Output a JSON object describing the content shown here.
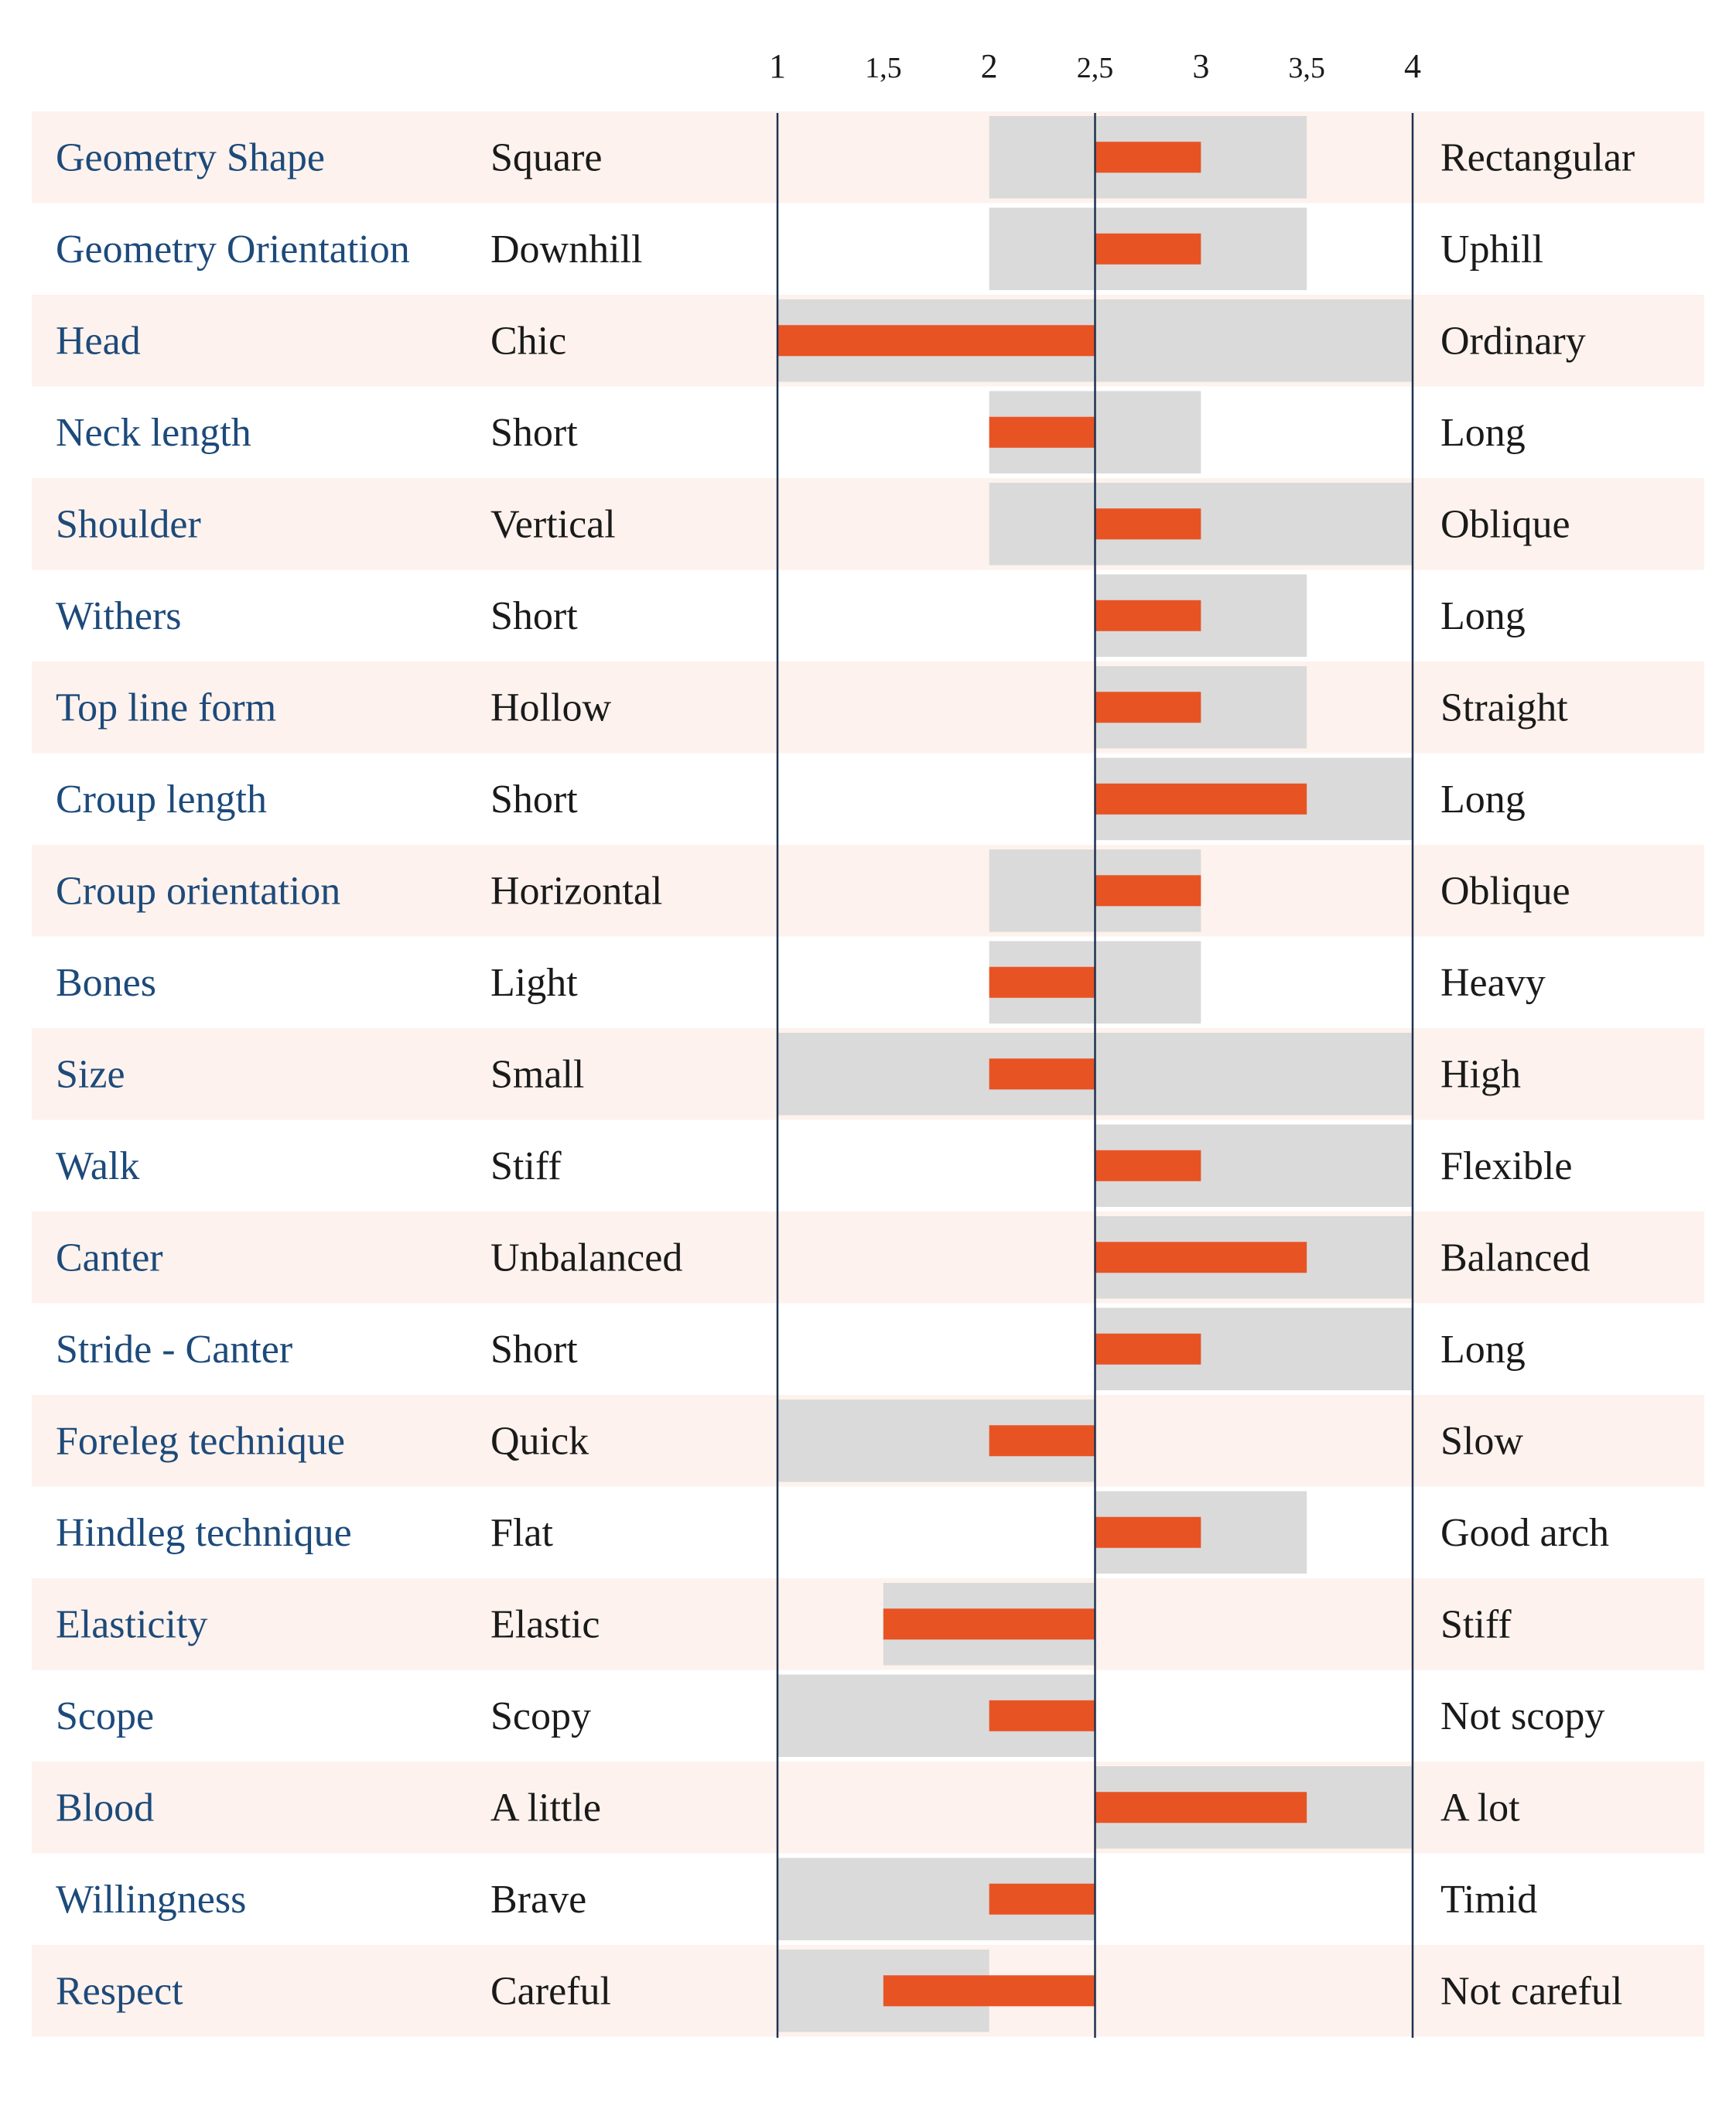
{
  "chart_data": {
    "type": "bar",
    "axis": {
      "ticks": [
        1,
        1.5,
        2,
        2.5,
        3,
        3.5,
        4
      ],
      "tick_labels": [
        "1",
        "1,5",
        "2",
        "2,5",
        "3",
        "3,5",
        "4"
      ],
      "range": [
        1,
        4
      ],
      "baseline": 2.5
    },
    "colors": {
      "bar": "#e85324",
      "range": "#dadada",
      "row_alt": "#fdf2ed",
      "trait_text": "#1d4a7a",
      "axis_line": "#1f3150"
    },
    "rows": [
      {
        "trait": "Geometry Shape",
        "low": "Square",
        "high": "Rectangular",
        "value": 3.0,
        "range": [
          2.0,
          3.5
        ]
      },
      {
        "trait": "Geometry Orientation",
        "low": "Downhill",
        "high": "Uphill",
        "value": 3.0,
        "range": [
          2.0,
          3.5
        ]
      },
      {
        "trait": "Head",
        "low": "Chic",
        "high": "Ordinary",
        "value": 1.0,
        "range": [
          1.0,
          4.0
        ]
      },
      {
        "trait": "Neck length",
        "low": "Short",
        "high": "Long",
        "value": 2.0,
        "range": [
          2.0,
          3.0
        ]
      },
      {
        "trait": "Shoulder",
        "low": "Vertical",
        "high": "Oblique",
        "value": 3.0,
        "range": [
          2.0,
          4.0
        ]
      },
      {
        "trait": "Withers",
        "low": "Short",
        "high": "Long",
        "value": 3.0,
        "range": [
          2.5,
          3.5
        ]
      },
      {
        "trait": "Top line form",
        "low": "Hollow",
        "high": "Straight",
        "value": 3.0,
        "range": [
          2.5,
          3.5
        ]
      },
      {
        "trait": "Croup length",
        "low": "Short",
        "high": "Long",
        "value": 3.5,
        "range": [
          2.5,
          4.0
        ]
      },
      {
        "trait": "Croup orientation",
        "low": "Horizontal",
        "high": "Oblique",
        "value": 3.0,
        "range": [
          2.0,
          3.0
        ]
      },
      {
        "trait": "Bones",
        "low": "Light",
        "high": "Heavy",
        "value": 2.0,
        "range": [
          2.0,
          3.0
        ]
      },
      {
        "trait": "Size",
        "low": "Small",
        "high": "High",
        "value": 2.0,
        "range": [
          1.0,
          4.0
        ]
      },
      {
        "trait": "Walk",
        "low": "Stiff",
        "high": "Flexible",
        "value": 3.0,
        "range": [
          2.5,
          4.0
        ]
      },
      {
        "trait": "Canter",
        "low": "Unbalanced",
        "high": "Balanced",
        "value": 3.5,
        "range": [
          2.5,
          4.0
        ]
      },
      {
        "trait": "Stride - Canter",
        "low": "Short",
        "high": "Long",
        "value": 3.0,
        "range": [
          2.5,
          4.0
        ]
      },
      {
        "trait": "Foreleg technique",
        "low": "Quick",
        "high": "Slow",
        "value": 2.0,
        "range": [
          1.0,
          2.5
        ]
      },
      {
        "trait": "Hindleg technique",
        "low": "Flat",
        "high": "Good arch",
        "value": 3.0,
        "range": [
          2.5,
          3.5
        ]
      },
      {
        "trait": "Elasticity",
        "low": "Elastic",
        "high": "Stiff",
        "value": 1.5,
        "range": [
          1.5,
          2.5
        ]
      },
      {
        "trait": "Scope",
        "low": "Scopy",
        "high": "Not scopy",
        "value": 2.0,
        "range": [
          1.0,
          2.5
        ]
      },
      {
        "trait": "Blood",
        "low": "A little",
        "high": "A lot",
        "value": 3.5,
        "range": [
          2.5,
          4.0
        ]
      },
      {
        "trait": "Willingness",
        "low": "Brave",
        "high": "Timid",
        "value": 2.0,
        "range": [
          1.0,
          2.5
        ]
      },
      {
        "trait": "Respect",
        "low": "Careful",
        "high": "Not careful",
        "value": 1.5,
        "range": [
          1.0,
          2.0
        ]
      }
    ]
  }
}
